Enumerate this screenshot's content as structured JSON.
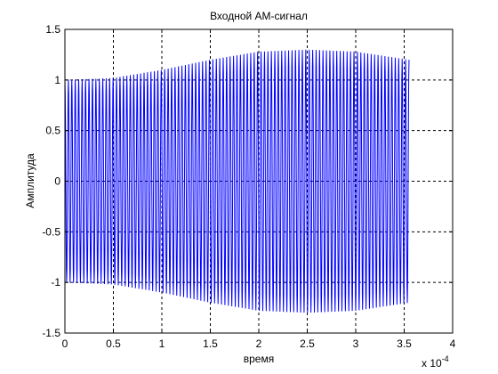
{
  "chart_data": {
    "type": "line",
    "title": "Входной АМ-сигнал",
    "xlabel": "время",
    "ylabel": "Амплитуда",
    "x_multiplier": "x 10",
    "x_exponent": "-4",
    "xlim": [
      0,
      4
    ],
    "ylim": [
      -1.5,
      1.5
    ],
    "xticks": [
      "0",
      "0.5",
      "1",
      "1.5",
      "2",
      "2.5",
      "3",
      "3.5",
      "4"
    ],
    "yticks": [
      "-1.5",
      "-1",
      "-0.5",
      "0",
      "0.5",
      "1",
      "1.5"
    ],
    "grid": true,
    "grid_style": "dashed",
    "series": [
      {
        "color": "#0000ff",
        "carrier_cycles": 100,
        "x_start": 0,
        "x_end": 3.55,
        "envelope": {
          "x": [
            0,
            0.5,
            1.0,
            1.5,
            2.0,
            2.5,
            3.0,
            3.55
          ],
          "y": [
            1.0,
            1.02,
            1.1,
            1.2,
            1.28,
            1.3,
            1.28,
            1.2
          ]
        }
      }
    ]
  }
}
